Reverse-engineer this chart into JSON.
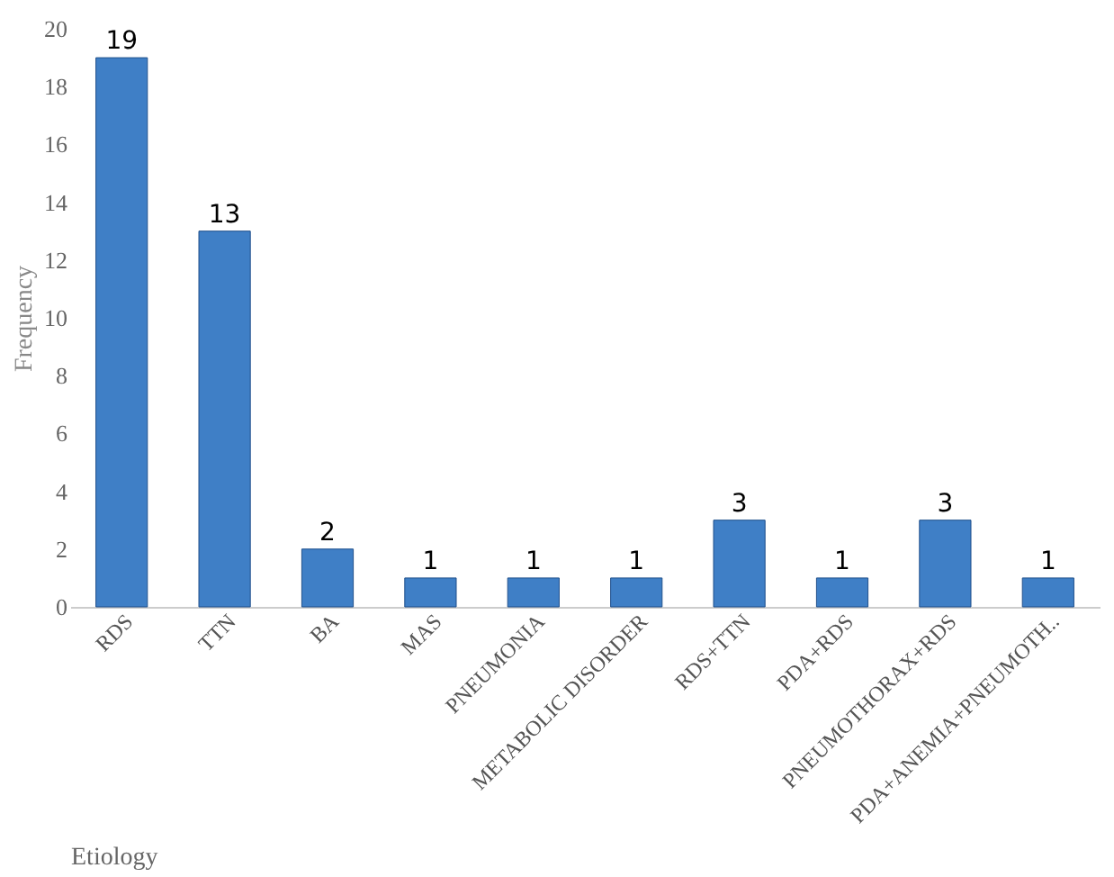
{
  "chart_data": {
    "type": "bar",
    "xlabel": "Etiology",
    "ylabel": "Frequency",
    "categories": [
      "RDS",
      "TTN",
      "BA",
      "MAS",
      "PNEUMONIA",
      "METABOLIC DISORDER",
      "RDS+TTN",
      "PDA+RDS",
      "PNEUMOTHORAX+RDS",
      "PDA+ANEMIA+PNEUMOTH.."
    ],
    "values": [
      19,
      13,
      2,
      1,
      1,
      1,
      3,
      1,
      3,
      1
    ],
    "color": "#3f7fc6",
    "ylim": [
      0,
      20
    ],
    "yticks": [
      0,
      2,
      4,
      6,
      8,
      10,
      12,
      14,
      16,
      18,
      20
    ],
    "data_labels": true
  }
}
